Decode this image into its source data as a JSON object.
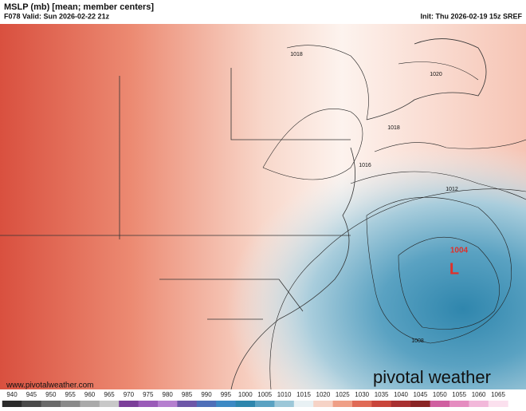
{
  "header": {
    "title": "MSLP (mb) [mean; member centers]",
    "valid": "F078 Valid: Sun 2026-02-22 21z",
    "init": "Init: Thu 2026-02-19 15z SREF"
  },
  "isobar_labels": [
    "1018",
    "1020",
    "1018",
    "1016",
    "1012",
    "1008"
  ],
  "low": {
    "pressure": "1004",
    "symbol": "L"
  },
  "watermark": "www.pivotalweather.com",
  "logo": "pivotal weather",
  "colorbar": {
    "ticks": [
      940,
      945,
      950,
      955,
      960,
      965,
      970,
      975,
      980,
      985,
      990,
      995,
      1000,
      1005,
      1010,
      1015,
      1020,
      1025,
      1030,
      1035,
      1040,
      1045,
      1050,
      1055,
      1060,
      1065
    ]
  }
}
